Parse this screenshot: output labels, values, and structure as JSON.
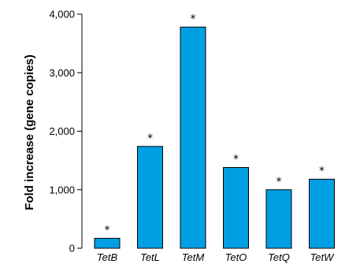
{
  "chart_data": {
    "type": "bar",
    "categories": [
      "TetB",
      "TetL",
      "TetM",
      "TetO",
      "TetQ",
      "TetW"
    ],
    "values": [
      170,
      1740,
      3780,
      1380,
      1000,
      1180
    ],
    "annotations": [
      "*",
      "*",
      "*",
      "*",
      "*",
      "*"
    ],
    "ylabel": "Fold increase (gene copies)",
    "xlabel": "",
    "ylim": [
      0,
      4000
    ],
    "yticks": [
      0,
      1000,
      2000,
      3000,
      4000
    ],
    "ytick_labels": [
      "0",
      "1,000",
      "2,000",
      "3,000",
      "4,000"
    ],
    "grid": false,
    "bar_color": "#009fe3",
    "edge_color": "#000000"
  }
}
